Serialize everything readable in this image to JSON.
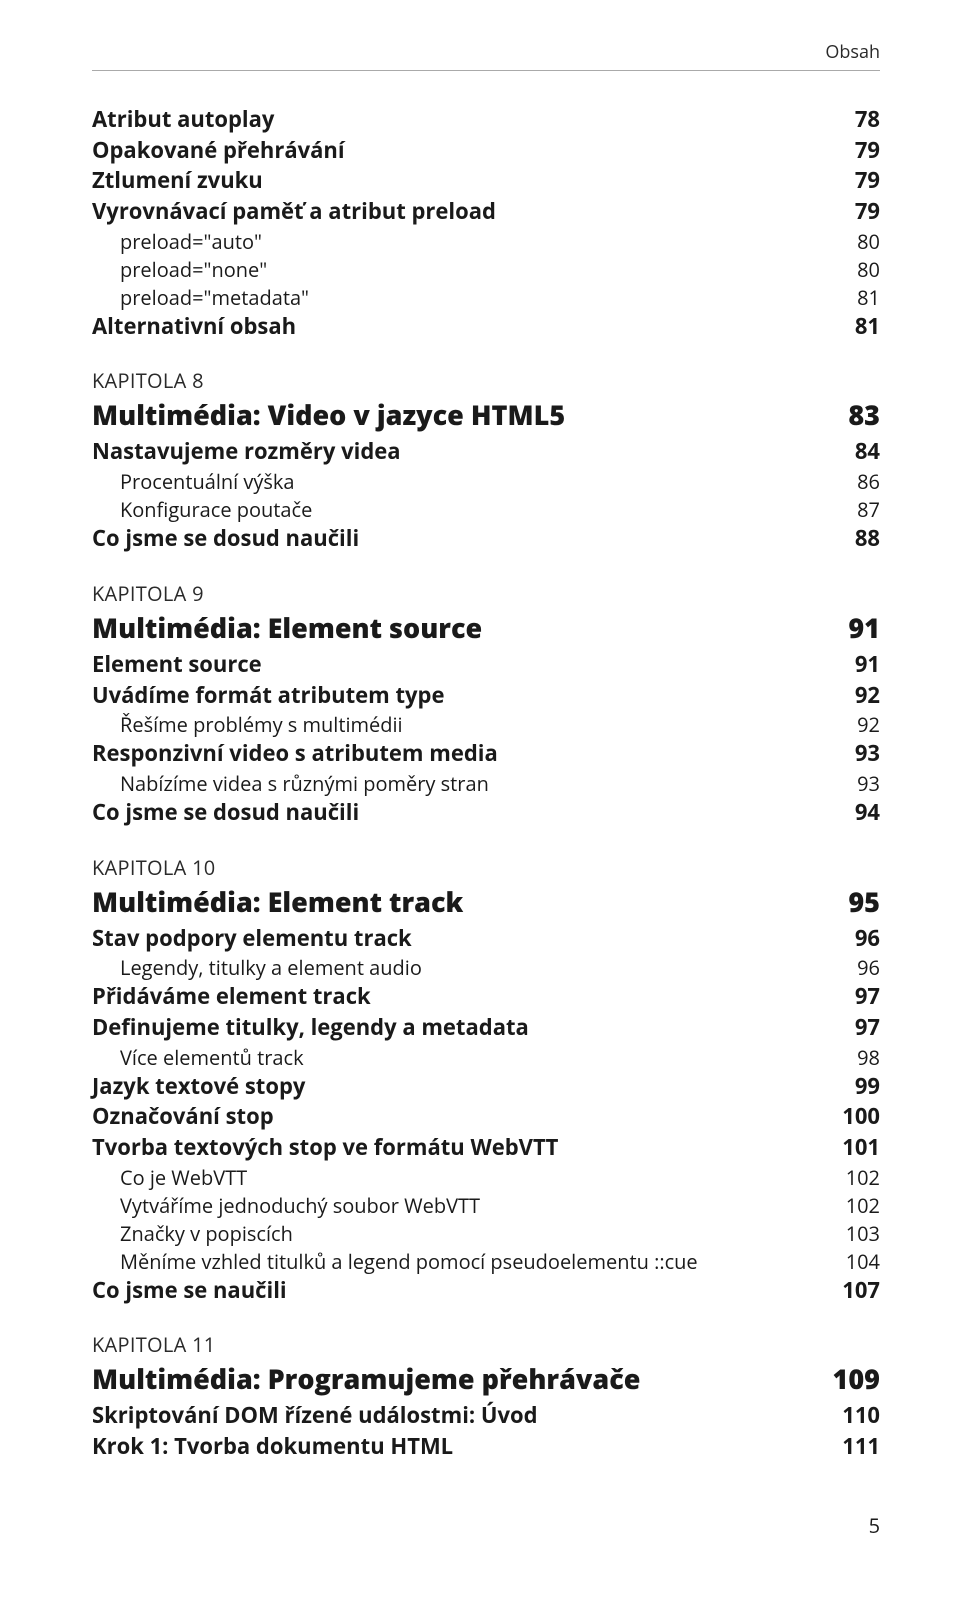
{
  "header": {
    "title": "Obsah"
  },
  "pre_entries": [
    {
      "level": 1,
      "label": "Atribut autoplay",
      "page": "78"
    },
    {
      "level": 1,
      "label": "Opakované přehrávání",
      "page": "79"
    },
    {
      "level": 1,
      "label": "Ztlumení zvuku",
      "page": "79"
    },
    {
      "level": 1,
      "label": "Vyrovnávací paměť a atribut preload",
      "page": "79"
    },
    {
      "level": 2,
      "label": "preload=\"auto\"",
      "page": "80"
    },
    {
      "level": 2,
      "label": "preload=\"none\"",
      "page": "80"
    },
    {
      "level": 2,
      "label": "preload=\"metadata\"",
      "page": "81"
    },
    {
      "level": 1,
      "label": "Alternativní obsah",
      "page": "81"
    }
  ],
  "chapters": [
    {
      "label": "KAPITOLA 8",
      "title": "Multimédia: Video v jazyce HTML5",
      "page": "83",
      "entries": [
        {
          "level": 1,
          "label": "Nastavujeme rozměry videa",
          "page": "84"
        },
        {
          "level": 2,
          "label": "Procentuální výška",
          "page": "86"
        },
        {
          "level": 2,
          "label": "Konfigurace poutače",
          "page": "87"
        },
        {
          "level": 1,
          "label": "Co jsme se dosud naučili",
          "page": "88"
        }
      ]
    },
    {
      "label": "KAPITOLA 9",
      "title": "Multimédia: Element source",
      "page": "91",
      "entries": [
        {
          "level": 1,
          "label": "Element source",
          "page": "91"
        },
        {
          "level": 1,
          "label": "Uvádíme formát atributem type",
          "page": "92"
        },
        {
          "level": 2,
          "label": "Řešíme problémy s multimédii",
          "page": "92"
        },
        {
          "level": 1,
          "label": "Responzivní video s atributem media",
          "page": "93"
        },
        {
          "level": 2,
          "label": "Nabízíme videa s různými poměry stran",
          "page": "93"
        },
        {
          "level": 1,
          "label": "Co jsme se dosud naučili",
          "page": "94"
        }
      ]
    },
    {
      "label": "KAPITOLA 10",
      "title": "Multimédia: Element track",
      "page": "95",
      "entries": [
        {
          "level": 1,
          "label": "Stav podpory elementu track",
          "page": "96"
        },
        {
          "level": 2,
          "label": "Legendy, titulky a element audio",
          "page": "96"
        },
        {
          "level": 1,
          "label": "Přidáváme element track",
          "page": "97"
        },
        {
          "level": 1,
          "label": "Definujeme titulky, legendy a metadata",
          "page": "97"
        },
        {
          "level": 2,
          "label": "Více elementů track",
          "page": "98"
        },
        {
          "level": 1,
          "label": "Jazyk textové stopy",
          "page": "99"
        },
        {
          "level": 1,
          "label": "Označování stop",
          "page": "100"
        },
        {
          "level": 1,
          "label": "Tvorba textových stop ve formátu WebVTT",
          "page": "101"
        },
        {
          "level": 2,
          "label": "Co je WebVTT",
          "page": "102"
        },
        {
          "level": 2,
          "label": "Vytváříme jednoduchý soubor WebVTT",
          "page": "102"
        },
        {
          "level": 2,
          "label": "Značky v popiscích",
          "page": "103"
        },
        {
          "level": 2,
          "label": "Měníme vzhled titulků a legend pomocí pseudoelementu ::cue",
          "page": "104"
        },
        {
          "level": 1,
          "label": "Co jsme se naučili",
          "page": "107"
        }
      ]
    },
    {
      "label": "KAPITOLA 11",
      "title": "Multimédia: Programujeme přehrávače",
      "page": "109",
      "entries": [
        {
          "level": 1,
          "label": "Skriptování DOM řízené událostmi: Úvod",
          "page": "110"
        },
        {
          "level": 1,
          "label": "Krok 1: Tvorba dokumentu HTML",
          "page": "111"
        }
      ]
    }
  ],
  "footer": {
    "page_number": "5"
  }
}
